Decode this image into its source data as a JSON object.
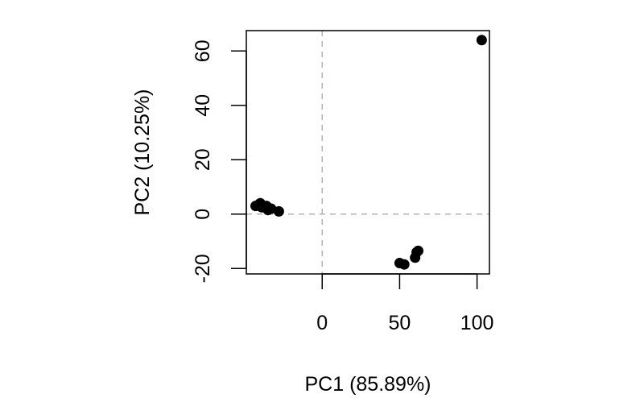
{
  "chart_data": {
    "type": "scatter",
    "title": "",
    "xlabel": "PC1 (85.89%)",
    "ylabel": "PC2 (10.25%)",
    "xlim": [
      -49,
      108
    ],
    "ylim": [
      -22,
      67.5
    ],
    "x_ticks": [
      0,
      50,
      100
    ],
    "x_tick_labels": [
      "0",
      "50",
      "100"
    ],
    "y_ticks": [
      -20,
      0,
      20,
      40,
      60
    ],
    "y_tick_labels": [
      "-20",
      "0",
      "20",
      "40",
      "60"
    ],
    "reference_lines": {
      "x": 0,
      "y": 0,
      "style": "dashed",
      "color": "#b3b3b3"
    },
    "grid": false,
    "point_color": "#000000",
    "points": [
      {
        "x": 103,
        "y": 64
      },
      {
        "x": -43,
        "y": 3
      },
      {
        "x": -41,
        "y": 3.5
      },
      {
        "x": -40,
        "y": 4
      },
      {
        "x": -39,
        "y": 2.5
      },
      {
        "x": -36,
        "y": 3
      },
      {
        "x": -35,
        "y": 1.5
      },
      {
        "x": -33,
        "y": 2
      },
      {
        "x": -28,
        "y": 1
      },
      {
        "x": 50,
        "y": -18
      },
      {
        "x": 53,
        "y": -18.5
      },
      {
        "x": 60,
        "y": -16
      },
      {
        "x": 61,
        "y": -14
      },
      {
        "x": 62,
        "y": -13.5
      }
    ]
  }
}
